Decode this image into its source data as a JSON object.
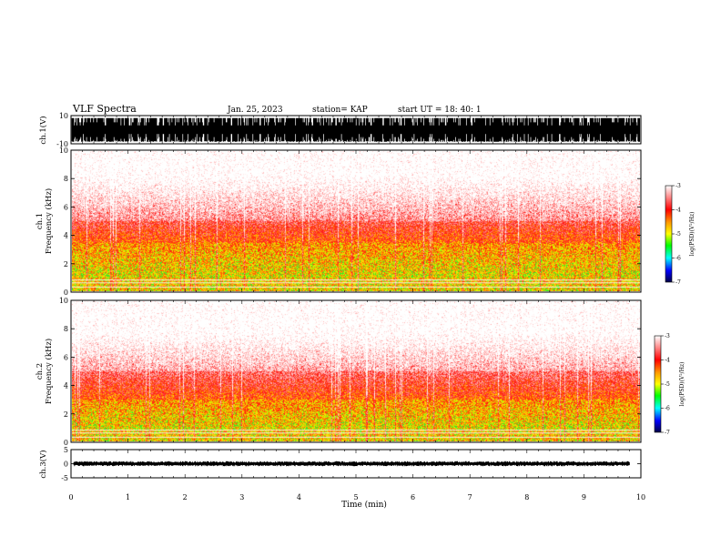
{
  "header": {
    "title": "VLF Spectra",
    "date": "Jan. 25, 2023",
    "station": "station= KAP",
    "start_ut": "start  UT =   18: 40: 1"
  },
  "chart_data": [
    {
      "type": "line",
      "name": "waveform-ch1",
      "ylabel": "ch.1(V)",
      "ylim": [
        -10,
        10
      ],
      "yticks": [
        "10",
        "-10"
      ],
      "xlim": [
        0,
        10
      ]
    },
    {
      "type": "heatmap",
      "name": "spectrogram-ch1",
      "ylabel": "ch.1",
      "ylabel2": "Frequency (kHz)",
      "ylim": [
        0,
        10
      ],
      "yticks": [
        "0",
        "2",
        "4",
        "6",
        "8",
        "10"
      ],
      "xlim": [
        0,
        10
      ],
      "colorbar": {
        "label": "log(PSD)(V²/Hz)",
        "range": [
          -7,
          -3
        ],
        "ticks": [
          "-3",
          "-4",
          "-5",
          "-6",
          "-7"
        ]
      },
      "intense_band_khz": [
        1,
        3.5
      ],
      "white_line_khz": [
        0.3,
        0.6,
        0.8
      ]
    },
    {
      "type": "heatmap",
      "name": "spectrogram-ch2",
      "ylabel": "ch.2",
      "ylabel2": "Frequency (kHz)",
      "ylim": [
        0,
        10
      ],
      "yticks": [
        "0",
        "2",
        "4",
        "6",
        "8",
        "10"
      ],
      "xlim": [
        0,
        10
      ],
      "colorbar": {
        "label": "log(PSD)(V²/Hz)",
        "range": [
          -7,
          -3
        ],
        "ticks": [
          "-3",
          "-4",
          "-5",
          "-6",
          "-7"
        ]
      },
      "intense_band_khz": [
        0.8,
        3
      ],
      "white_line_khz": [
        0.3,
        0.6,
        0.8
      ]
    },
    {
      "type": "line",
      "name": "waveform-ch3",
      "ylabel": "ch.3(V)",
      "ylim": [
        -5,
        5
      ],
      "yticks": [
        "5",
        "0",
        "-5"
      ],
      "xlim": [
        0,
        10
      ]
    }
  ],
  "xaxis": {
    "label": "Time (min)",
    "ticks": [
      "0",
      "1",
      "2",
      "3",
      "4",
      "5",
      "6",
      "7",
      "8",
      "9",
      "10"
    ]
  }
}
